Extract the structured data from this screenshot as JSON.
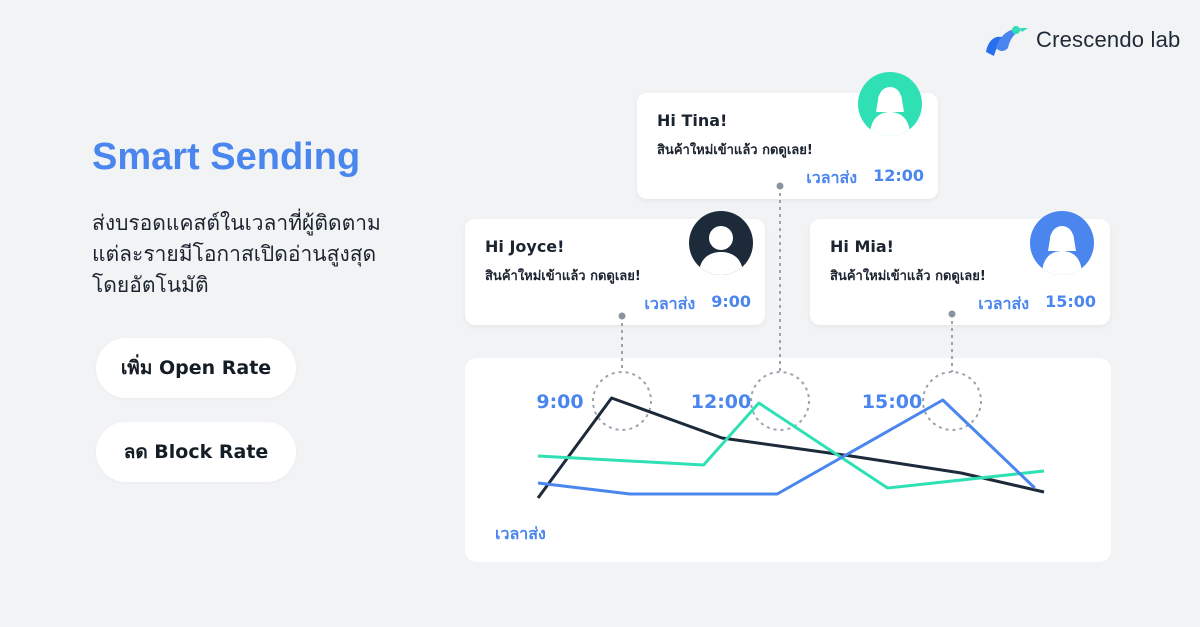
{
  "brand": {
    "name": "Crescendo lab",
    "colors": {
      "primary": "#4a86ee",
      "teal": "#2ee0b4",
      "dark": "#1c2a3a"
    }
  },
  "hero": {
    "title": "Smart Sending",
    "description_lines": [
      "ส่งบรอดแคสต์ในเวลาที่ผู้ติดตาม",
      "แต่ละรายมีโอกาสเปิดอ่านสูงสุด",
      "โดยอัตโนมัติ"
    ]
  },
  "benefits": [
    {
      "label": "เพิ่ม Open Rate"
    },
    {
      "label": "ลด Block Rate"
    }
  ],
  "messages": {
    "tina": {
      "greeting": "Hi Tina!",
      "text": "สินค้าใหม่เข้าแล้ว กดดูเลย!",
      "time_label": "เวลาส่ง",
      "time": "12:00",
      "avatar": "user-avatar-icon"
    },
    "joyce": {
      "greeting": "Hi Joyce!",
      "text": "สินค้าใหม่เข้าแล้ว กดดูเลย!",
      "time_label": "เวลาส่ง",
      "time": "9:00",
      "avatar": "user-avatar-icon"
    },
    "mia": {
      "greeting": "Hi Mia!",
      "text": "สินค้าใหม่เข้าแล้ว กดดูเลย!",
      "time_label": "เวลาส่ง",
      "time": "15:00",
      "avatar": "user-avatar-icon"
    }
  },
  "chart_data": {
    "type": "line",
    "xlabel": "เวลาส่ง",
    "peak_labels": [
      "9:00",
      "12:00",
      "15:00"
    ],
    "series": [
      {
        "color": "#1c2a3a",
        "values": [
          0,
          10,
          6,
          4.2,
          2.5,
          0.6
        ],
        "x": [
          0,
          0.8,
          2.0,
          3.4,
          4.6,
          5.5
        ]
      },
      {
        "color": "#2ee0b4",
        "values": [
          4.2,
          3.3,
          9.5,
          1.0,
          2.7
        ],
        "x": [
          0,
          1.8,
          2.4,
          3.8,
          5.5
        ]
      },
      {
        "color": "#4a86ee",
        "values": [
          1.5,
          0.4,
          0.4,
          9.8,
          1.0
        ],
        "x": [
          0,
          1.0,
          2.6,
          4.4,
          5.4
        ]
      }
    ],
    "grid": false,
    "legend": "none"
  }
}
